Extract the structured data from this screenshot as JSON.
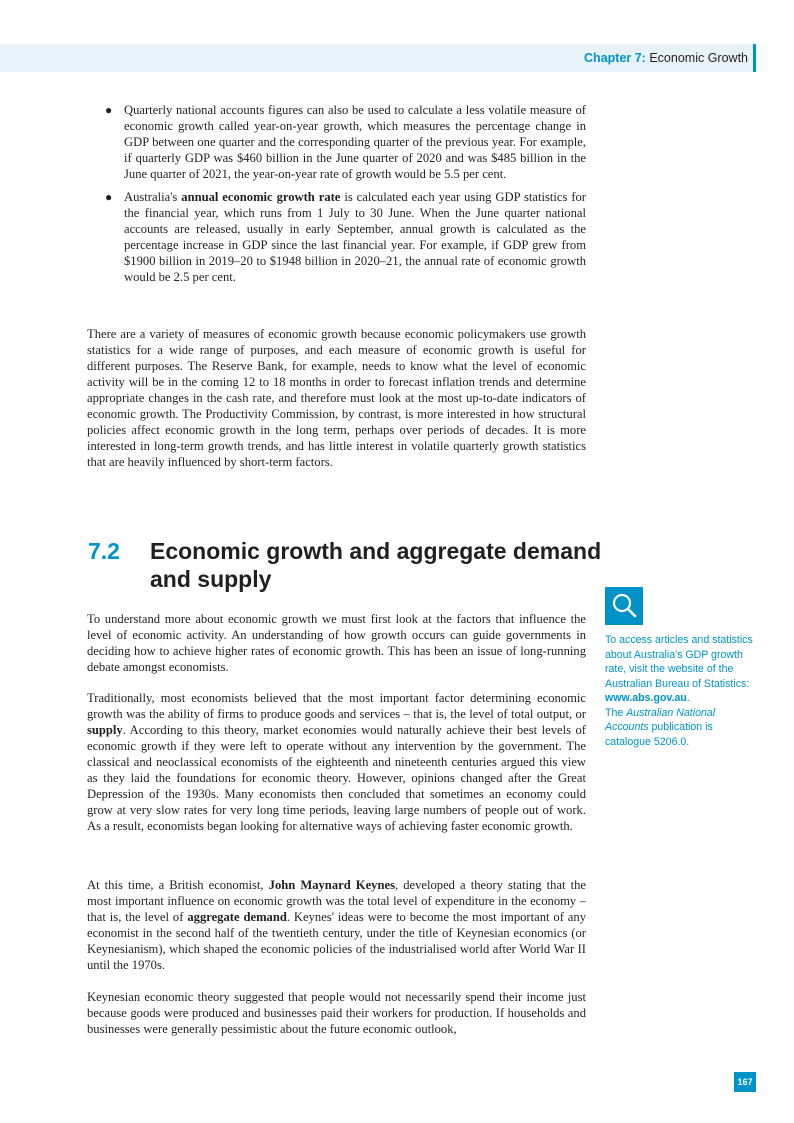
{
  "header": {
    "chapter_label": "Chapter 7:",
    "chapter_title": "Economic Growth"
  },
  "bullets": [
    {
      "text": "Quarterly national accounts figures can also be used to calculate a less volatile measure of economic growth called year-on-year growth, which measures the percentage change in GDP between one quarter and the corresponding quarter of the previous year. For example, if quarterly GDP was $460 billion in the June quarter of 2020 and was $485 billion in the June quarter of 2021, the year-on-year rate of growth would be 5.5 per cent."
    },
    {
      "text_before": "Australia's ",
      "term": "annual economic growth rate",
      "text_after": " is calculated each year using GDP statistics for the financial year, which runs from 1 July to 30 June. When the June quarter national accounts are released, usually in early September, annual growth is calculated as the percentage increase in GDP since the last financial year. For example, if GDP grew from $1900 billion in 2019–20 to $1948 billion in 2020–21, the annual rate of economic growth would be 2.5 per cent."
    }
  ],
  "paragraph_measures": "There are a variety of measures of economic growth because economic policymakers use growth statistics for a wide range of purposes, and each measure of economic growth is useful for different purposes. The Reserve Bank, for example, needs to know what the level of economic activity will be in the coming 12 to 18 months in order to forecast inflation trends and determine appropriate changes in the cash rate, and therefore must look at the most up-to-date indicators of economic growth. The Productivity Commission, by contrast, is more interested in how structural policies affect economic growth in the long term, perhaps over periods of decades. It is more interested in long-term growth trends, and has little interest in volatile quarterly growth statistics that are heavily influenced by short-term factors.",
  "section": {
    "number": "7.2",
    "title": "Economic growth and aggregate demand and supply"
  },
  "paragraph_intro": "To understand more about economic growth we must first look at the factors that influence the level of economic activity. An understanding of how growth occurs can guide governments in deciding how to achieve higher rates of economic growth. This has been an issue of long-running debate amongst economists.",
  "paragraph_traditional": {
    "before": "Traditionally, most economists believed that the most important factor determining economic growth was the ability of firms to produce goods and services – that is, the level of total output, or ",
    "term": "supply",
    "after": ". According to this theory, market economies would naturally achieve their best levels of economic growth if they were left to operate without any intervention by the government. The classical and neoclassical economists of the eighteenth and nineteenth centuries argued this view as they laid the foundations for economic theory. However, opinions changed after the Great Depression of the 1930s. Many economists then concluded that sometimes an economy could grow at very slow rates for very long time periods, leaving large numbers of people out of work. As a result, economists began looking for alternative ways of achieving faster economic growth."
  },
  "paragraph_keynes": {
    "before": "At this time, a British economist, ",
    "name": "John Maynard Keynes",
    "middle": ", developed a theory stating that the most important influence on economic growth was the total level of expenditure in the economy – that is, the level of ",
    "term": "aggregate demand",
    "after": ". Keynes' ideas were to become the most important of any economist in the second half of the twentieth century, under the title of Keynesian economics (or Keynesianism), which shaped the economic policies of the industrialised world after World War II until the 1970s."
  },
  "paragraph_keynesian": "Keynesian economic theory suggested that people would not necessarily spend their income just because goods were produced and businesses paid their workers for production. If households and businesses were generally pessimistic about the future economic outlook,",
  "sidebar": {
    "icon": "magnifier-icon",
    "line_intro": "To access articles and statistics about Australia's GDP growth rate, visit the website of the Australian Bureau of Statistics:",
    "url": "www.abs.gov.au",
    "url_suffix": ".",
    "pub_prefix": "The ",
    "pub_name": "Australian National Accounts",
    "pub_suffix": " publication is catalogue 5206.0."
  },
  "page_number": "167",
  "colors": {
    "accent": "#0093c9",
    "header_band": "#e8f3f9",
    "text": "#231f20"
  }
}
